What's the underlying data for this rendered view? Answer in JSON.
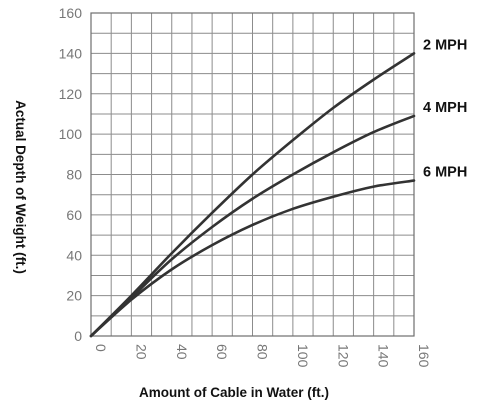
{
  "chart_data": {
    "type": "line",
    "xlabel": "Amount of Cable in Water (ft.)",
    "ylabel": "Actual Depth of Weight (ft.)",
    "xlim": [
      0,
      160
    ],
    "ylim": [
      0,
      160
    ],
    "x_ticks": [
      "0",
      "20",
      "40",
      "60",
      "80",
      "100",
      "120",
      "140",
      "160"
    ],
    "y_ticks": [
      "0",
      "20",
      "40",
      "60",
      "80",
      "100",
      "120",
      "140",
      "160"
    ],
    "grid": true,
    "series": [
      {
        "name": "2 MPH",
        "x": [
          0,
          20,
          40,
          60,
          80,
          100,
          120,
          140,
          160
        ],
        "y": [
          0,
          20,
          41,
          61,
          80,
          97,
          113,
          127,
          140
        ]
      },
      {
        "name": "4 MPH",
        "x": [
          0,
          20,
          40,
          60,
          80,
          100,
          120,
          140,
          160
        ],
        "y": [
          0,
          19,
          38,
          54,
          68,
          80,
          91,
          101,
          109
        ]
      },
      {
        "name": "6 MPH",
        "x": [
          0,
          20,
          40,
          60,
          80,
          100,
          120,
          140,
          160
        ],
        "y": [
          0,
          18,
          33,
          45,
          55,
          63,
          69,
          74,
          77
        ]
      }
    ],
    "colors": {
      "line": "#333333",
      "grid": "#8c8c8c",
      "text": "#111111",
      "tick": "#777777"
    }
  }
}
